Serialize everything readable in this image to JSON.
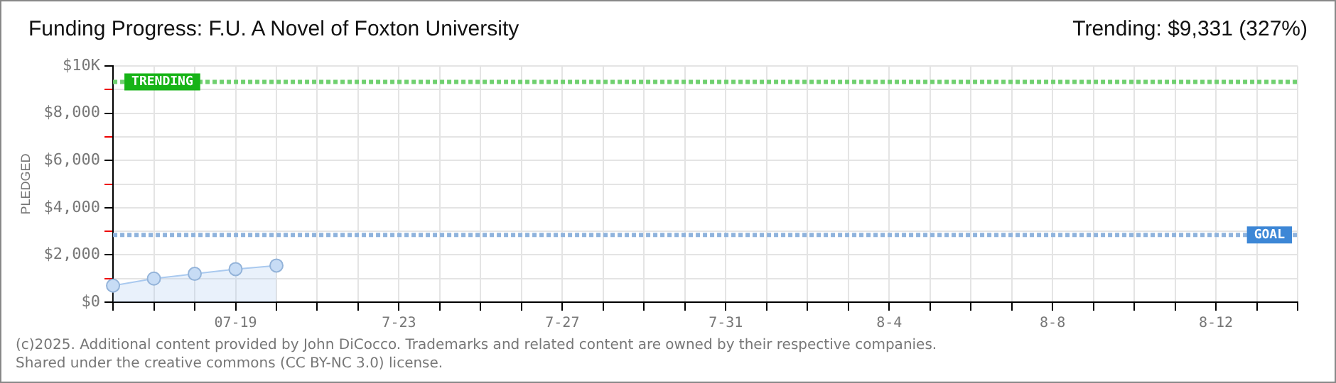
{
  "chart_data": {
    "type": "area",
    "title": "Funding Progress: F.U. A Novel of Foxton University",
    "ylabel": "PLEDGED",
    "categories": [
      null,
      null,
      null,
      "07-19",
      null,
      null,
      null,
      "7-23",
      null,
      null,
      null,
      "7-27",
      null,
      null,
      null,
      "7-31",
      null,
      null,
      null,
      "8-4",
      null,
      null,
      null,
      "8-8",
      null,
      null,
      null,
      "8-12",
      null,
      null
    ],
    "series": [
      {
        "color": "#a9c9ef",
        "values": [
          700,
          1000,
          1200,
          1400,
          1550,
          null,
          null,
          null,
          null,
          null,
          null,
          null,
          null,
          null,
          null,
          null,
          null,
          null,
          null,
          null,
          null,
          null,
          null,
          null,
          null,
          null,
          null,
          null,
          null,
          null
        ]
      }
    ],
    "ylim": [
      0,
      10000
    ],
    "yticks": [
      {
        "value": 0,
        "label": "$0"
      },
      {
        "value": 1000,
        "label": null
      },
      {
        "value": 2000,
        "label": "$2,000"
      },
      {
        "value": 3000,
        "label": null
      },
      {
        "value": 4000,
        "label": "$4,000"
      },
      {
        "value": 5000,
        "label": null
      },
      {
        "value": 6000,
        "label": "$6,000"
      },
      {
        "value": 7000,
        "label": null
      },
      {
        "value": 8000,
        "label": "$8,000"
      },
      {
        "value": 9000,
        "label": null
      },
      {
        "value": 10000,
        "label": "$10K"
      }
    ],
    "ref_lines": [
      {
        "axis": "y",
        "value": 9331,
        "label": "TRENDING",
        "color": "#6fd06f",
        "line_style": "dotted"
      },
      {
        "axis": "y",
        "value": 2850,
        "label": "GOAL",
        "color": "#8fb3dd",
        "line_style": "dotted"
      }
    ],
    "annotations": [
      "Trending: $9,331 (327%)",
      "(c)2025. Additional content provided by John DiCocco. Trademarks and related content are owned by their respective companies.",
      "Shared under the creative commons (CC BY-NC 3.0) license."
    ],
    "grid": true,
    "legend": false,
    "marker": "circle",
    "line_style": "solid"
  }
}
